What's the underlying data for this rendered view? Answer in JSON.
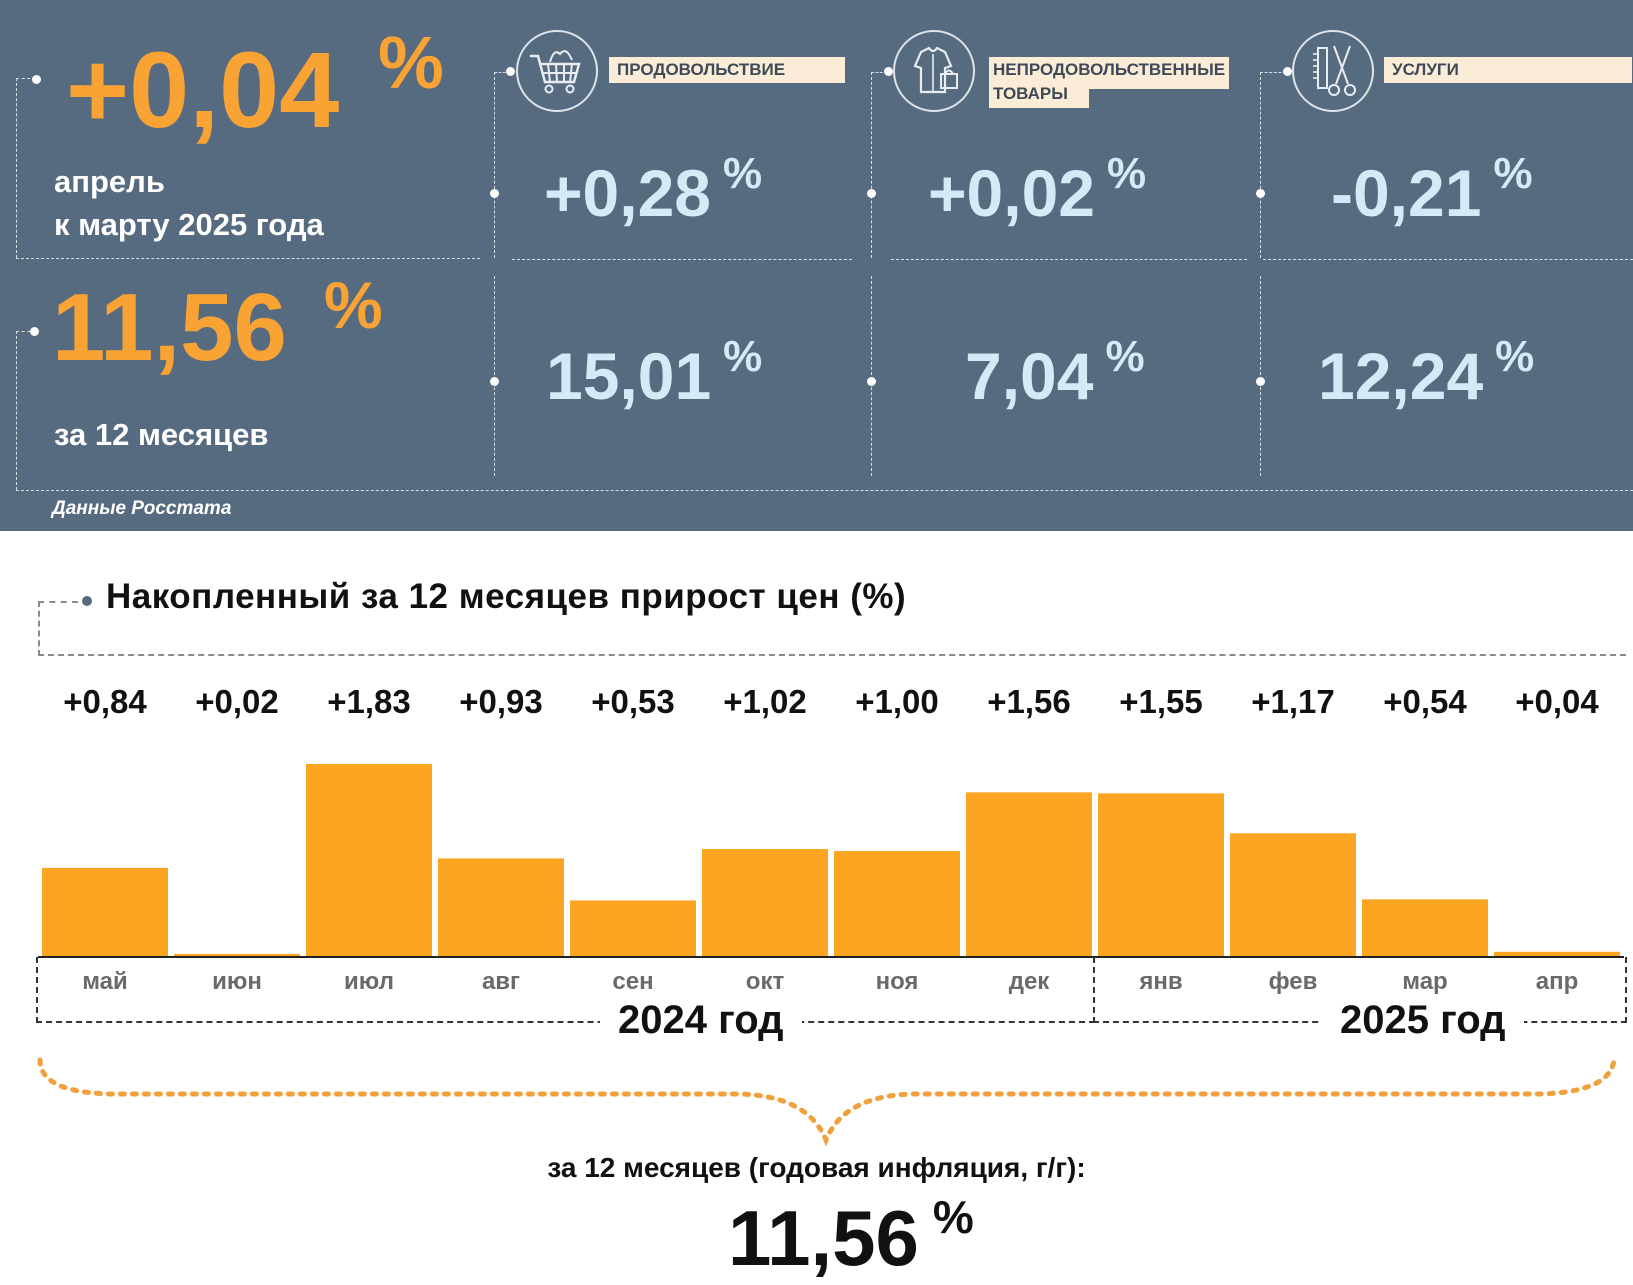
{
  "header": {
    "monthly": {
      "value": "+0,04",
      "pct": "%",
      "line1": "апрель",
      "line2": "к марту 2025 года"
    },
    "annual": {
      "value": "11,56",
      "pct": "%",
      "line1": "за 12 месяцев"
    },
    "source": "Данные Росстата",
    "categories": [
      {
        "label": "ПРОДОВОЛЬСТВИЕ",
        "label2": "",
        "icon": "shopping-cart-icon",
        "monthly": "+0,28",
        "annual": "15,01",
        "pct": "%"
      },
      {
        "label": "НЕПРОДОВОЛЬСТВЕННЫЕ",
        "label2": "ТОВАРЫ",
        "icon": "clothes-bag-icon",
        "monthly": "+0,02",
        "annual": "7,04",
        "pct": "%"
      },
      {
        "label": "УСЛУГИ",
        "label2": "",
        "icon": "comb-scissors-icon",
        "monthly": "-0,21",
        "annual": "12,24",
        "pct": "%"
      }
    ],
    "colors": {
      "background": "#576b80",
      "accent": "#f9a335",
      "value": "#d4eaf6",
      "label_bg": "#fbecd7"
    }
  },
  "chart_data": {
    "type": "bar",
    "title": "Накопленный за 12 месяцев прирост цен (%)",
    "categories": [
      "май",
      "июн",
      "июл",
      "авг",
      "сен",
      "окт",
      "ноя",
      "дек",
      "янв",
      "фев",
      "мар",
      "апр"
    ],
    "values": [
      0.84,
      0.02,
      1.83,
      0.93,
      0.53,
      1.02,
      1.0,
      1.56,
      1.55,
      1.17,
      0.54,
      0.04
    ],
    "data_labels": [
      "+0,84",
      "+0,02",
      "+1,83",
      "+0,93",
      "+0,53",
      "+1,02",
      "+1,00",
      "+1,56",
      "+1,55",
      "+1,17",
      "+0,54",
      "+0,04"
    ],
    "groups": [
      {
        "label": "2024 год",
        "from": "май",
        "to": "дек"
      },
      {
        "label": "2025 год",
        "from": "янв",
        "to": "апр"
      }
    ],
    "ylim": [
      0,
      1.83
    ],
    "grid": false,
    "bar_color": "#fca522",
    "total_label": "за 12 месяцев (годовая инфляция, г/г):",
    "total_value": "11,56",
    "total_pct": "%"
  }
}
